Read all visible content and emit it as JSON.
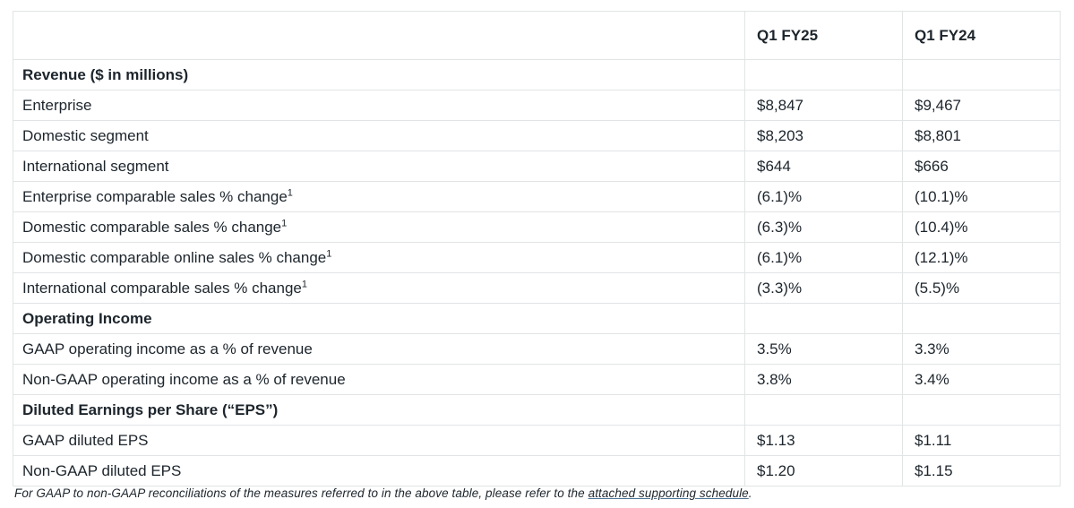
{
  "colors": {
    "background": "#ffffff",
    "border": "#e1e4e5",
    "text": "#1d252c",
    "link_underline": "#4c7396"
  },
  "table": {
    "columns": [
      "",
      "Q1 FY25",
      "Q1 FY24"
    ],
    "rows": [
      {
        "type": "section",
        "label": "Revenue ($ in millions)",
        "sup": "",
        "q1fy25": "",
        "q1fy24": ""
      },
      {
        "type": "data",
        "label": "Enterprise",
        "sup": "",
        "q1fy25": "$8,847",
        "q1fy24": "$9,467"
      },
      {
        "type": "data",
        "label": "Domestic segment",
        "sup": "",
        "q1fy25": "$8,203",
        "q1fy24": "$8,801"
      },
      {
        "type": "data",
        "label": "International segment",
        "sup": "",
        "q1fy25": "$644",
        "q1fy24": "$666"
      },
      {
        "type": "data",
        "label": "Enterprise comparable sales % change",
        "sup": "1",
        "q1fy25": "(6.1)%",
        "q1fy24": "(10.1)%"
      },
      {
        "type": "data",
        "label": "Domestic comparable sales % change",
        "sup": "1",
        "q1fy25": "(6.3)%",
        "q1fy24": "(10.4)%"
      },
      {
        "type": "data",
        "label": "Domestic comparable online sales % change",
        "sup": "1",
        "q1fy25": "(6.1)%",
        "q1fy24": "(12.1)%"
      },
      {
        "type": "data",
        "label": "International comparable sales % change",
        "sup": "1",
        "q1fy25": "(3.3)%",
        "q1fy24": "(5.5)%"
      },
      {
        "type": "section",
        "label": "Operating Income",
        "sup": "",
        "q1fy25": "",
        "q1fy24": ""
      },
      {
        "type": "data",
        "label": "GAAP operating income as a % of revenue",
        "sup": "",
        "q1fy25": "3.5%",
        "q1fy24": "3.3%"
      },
      {
        "type": "data",
        "label": "Non-GAAP operating income as a % of revenue",
        "sup": "",
        "q1fy25": "3.8%",
        "q1fy24": "3.4%"
      },
      {
        "type": "section",
        "label": "Diluted Earnings per Share (“EPS”)",
        "sup": "",
        "q1fy25": "",
        "q1fy24": ""
      },
      {
        "type": "data",
        "label": "GAAP diluted EPS",
        "sup": "",
        "q1fy25": "$1.13",
        "q1fy24": "$1.11"
      },
      {
        "type": "data",
        "label": "Non-GAAP diluted EPS",
        "sup": "",
        "q1fy25": "$1.20",
        "q1fy24": "$1.15"
      }
    ]
  },
  "footnote": {
    "text_before_link": "For GAAP to non-GAAP reconciliations of the measures referred to in the above table, please refer to the ",
    "link_text": "attached supporting schedule",
    "text_after_link": "."
  }
}
